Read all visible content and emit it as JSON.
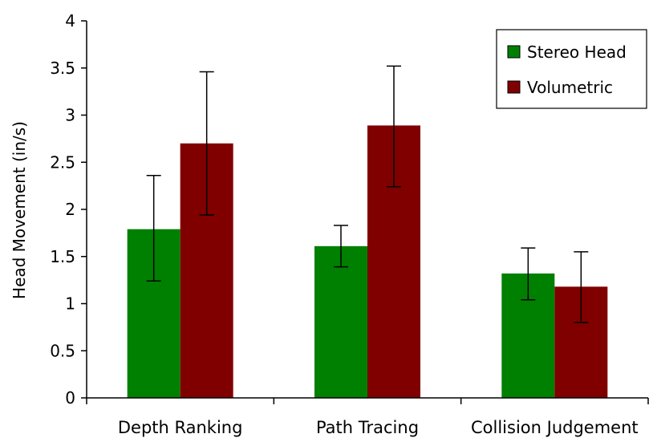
{
  "chart_data": {
    "type": "bar",
    "title": "",
    "xlabel": "",
    "ylabel": "Head Movement (in/s)",
    "ylim": [
      0,
      4
    ],
    "yticks": [
      0,
      0.5,
      1,
      1.5,
      2,
      2.5,
      3,
      3.5,
      4
    ],
    "ytick_labels": [
      "0",
      "0.5",
      "1",
      "1.5",
      "2",
      "2.5",
      "3",
      "3.5",
      "4"
    ],
    "grid": false,
    "legend_position": "top-right",
    "categories": [
      "Depth Ranking",
      "Path Tracing",
      "Collision Judgement"
    ],
    "series": [
      {
        "name": "Stereo Head",
        "color": "#008000",
        "values": [
          1.79,
          1.61,
          1.32
        ],
        "error_low": [
          1.24,
          1.39,
          1.04
        ],
        "error_high": [
          2.36,
          1.83,
          1.59
        ]
      },
      {
        "name": "Volumetric",
        "color": "#800000",
        "values": [
          2.7,
          2.89,
          1.18
        ],
        "error_low": [
          1.94,
          2.24,
          0.8
        ],
        "error_high": [
          3.46,
          3.52,
          1.55
        ]
      }
    ]
  }
}
